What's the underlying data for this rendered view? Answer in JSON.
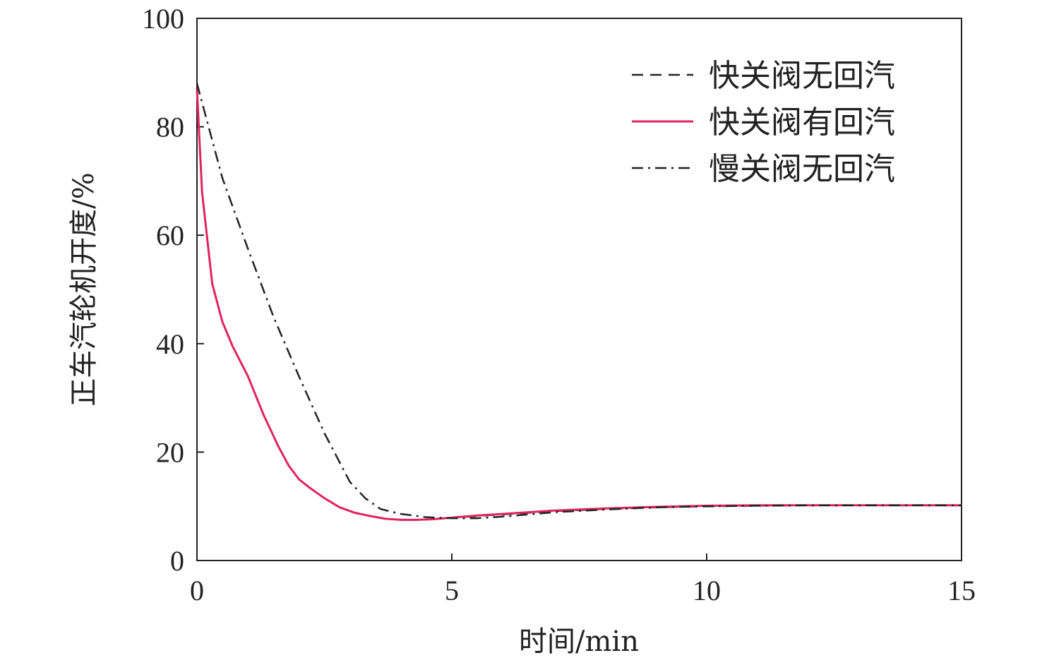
{
  "chart_data": {
    "type": "line",
    "title": "",
    "xlabel": "时间/min",
    "ylabel": "正车汽轮机开度/%",
    "xlim": [
      0,
      15
    ],
    "ylim": [
      0,
      100
    ],
    "xticks": [
      0,
      5,
      10,
      15
    ],
    "yticks": [
      0,
      20,
      40,
      60,
      80,
      100
    ],
    "grid": false,
    "legend_position": "top-right",
    "series": [
      {
        "name": "快关阀无回汽",
        "color": "#222222",
        "dash": "dashed",
        "x": [
          0,
          0.1,
          0.3,
          0.5,
          0.7,
          1.0,
          1.3,
          1.6,
          1.8,
          2.0,
          2.2,
          2.5,
          2.8,
          3.1,
          3.4,
          3.7,
          4.0,
          4.3,
          4.6,
          5.0,
          5.5,
          6.0,
          6.5,
          7.0,
          8.0,
          9.0,
          10.0,
          11.0,
          12.0,
          13.0,
          14.0,
          15.0
        ],
        "y": [
          87,
          68,
          51,
          44,
          39.5,
          34,
          27,
          21,
          17.5,
          15,
          13.5,
          11.5,
          9.8,
          8.8,
          8.2,
          7.7,
          7.5,
          7.5,
          7.6,
          7.9,
          8.2,
          8.5,
          8.8,
          9.1,
          9.5,
          9.8,
          10.0,
          10.1,
          10.2,
          10.2,
          10.2,
          10.2
        ]
      },
      {
        "name": "快关阀有回汽",
        "color": "#e0245e",
        "dash": "solid",
        "x": [
          0,
          0.1,
          0.3,
          0.5,
          0.7,
          1.0,
          1.3,
          1.6,
          1.8,
          2.0,
          2.2,
          2.5,
          2.8,
          3.1,
          3.4,
          3.7,
          4.0,
          4.3,
          4.6,
          5.0,
          5.5,
          6.0,
          6.5,
          7.0,
          8.0,
          9.0,
          10.0,
          11.0,
          12.0,
          13.0,
          14.0,
          15.0
        ],
        "y": [
          87,
          68,
          51,
          44,
          39.5,
          34,
          27,
          21,
          17.5,
          15,
          13.5,
          11.5,
          9.8,
          8.8,
          8.2,
          7.7,
          7.5,
          7.5,
          7.6,
          7.9,
          8.3,
          8.6,
          8.9,
          9.2,
          9.6,
          9.9,
          10.1,
          10.2,
          10.2,
          10.2,
          10.2,
          10.2
        ]
      },
      {
        "name": "慢关阀无回汽",
        "color": "#222222",
        "dash": "dashdot",
        "x": [
          0,
          0.5,
          1.0,
          1.5,
          2.0,
          2.5,
          3.0,
          3.3,
          3.6,
          4.0,
          4.5,
          5.0,
          5.5,
          6.0,
          7.0,
          8.0,
          9.0,
          10.0,
          11.0,
          12.0,
          13.0,
          14.0,
          15.0
        ],
        "y": [
          88,
          70.5,
          57.5,
          45,
          34,
          23.5,
          14.5,
          11.5,
          9.5,
          8.6,
          8.0,
          7.8,
          7.8,
          8.1,
          8.9,
          9.4,
          9.8,
          10.0,
          10.1,
          10.2,
          10.2,
          10.2,
          10.2
        ]
      }
    ]
  }
}
